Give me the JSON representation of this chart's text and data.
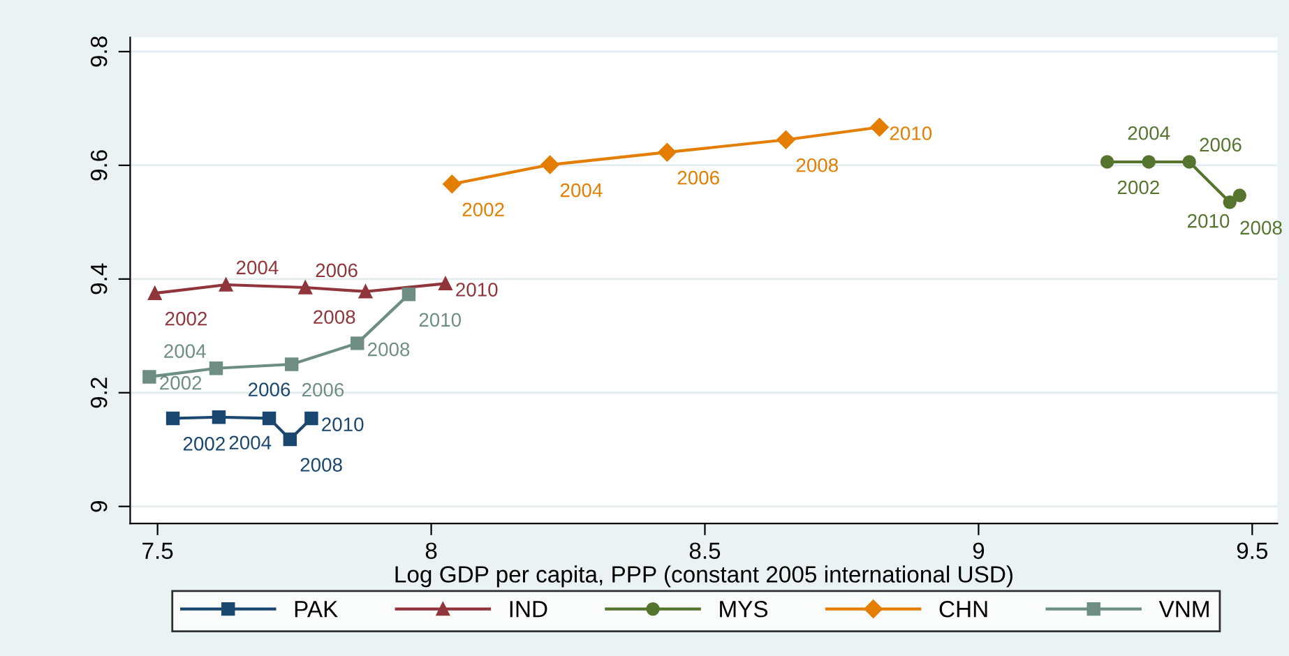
{
  "chart_data": {
    "type": "line",
    "xlabel": "Log GDP per capita, PPP (constant 2005 international USD)",
    "xlim": [
      7.45,
      9.546
    ],
    "xticks": [
      7.5,
      8,
      8.5,
      9,
      9.5
    ],
    "ylim": [
      8.97,
      9.825
    ],
    "yticks": [
      9,
      9.2,
      9.4,
      9.6,
      9.8
    ],
    "grid": "y",
    "legend": "bottom",
    "series": [
      {
        "name": "PAK",
        "color": "#1a476f",
        "marker": "square",
        "x": [
          7.528,
          7.612,
          7.704,
          7.742,
          7.781
        ],
        "values": [
          9.155,
          9.157,
          9.155,
          9.118,
          9.155
        ]
      },
      {
        "name": "IND",
        "color": "#90353b",
        "marker": "triangle",
        "x": [
          7.495,
          7.625,
          7.77,
          7.88,
          8.026
        ],
        "values": [
          9.375,
          9.39,
          9.385,
          9.378,
          9.392
        ]
      },
      {
        "name": "MYS",
        "color": "#55752f",
        "marker": "circle",
        "x": [
          9.235,
          9.311,
          9.385,
          9.459,
          9.477
        ],
        "values": [
          9.606,
          9.606,
          9.606,
          9.535,
          9.547
        ]
      },
      {
        "name": "CHN",
        "color": "#e37e00",
        "marker": "diamond",
        "x": [
          8.038,
          8.217,
          8.431,
          8.648,
          8.819
        ],
        "values": [
          9.567,
          9.601,
          9.623,
          9.645,
          9.667
        ]
      },
      {
        "name": "VNM",
        "color": "#6e8e84",
        "marker": "square",
        "x": [
          7.485,
          7.607,
          7.745,
          7.865,
          7.959
        ],
        "values": [
          9.228,
          9.243,
          9.25,
          9.287,
          9.373
        ]
      }
    ],
    "annotations": [
      {
        "text": "2002",
        "x": 7.528,
        "y": 9.155
      },
      {
        "text": "2004",
        "x": 7.612,
        "y": 9.157
      },
      {
        "text": "2006",
        "x": 7.704,
        "y": 9.155
      },
      {
        "text": "2008",
        "x": 7.742,
        "y": 9.118
      },
      {
        "text": "2010",
        "x": 7.781,
        "y": 9.155
      },
      {
        "text": "2002",
        "x": 7.495,
        "y": 9.375
      },
      {
        "text": "2004",
        "x": 7.625,
        "y": 9.39
      },
      {
        "text": "2006",
        "x": 7.77,
        "y": 9.385
      },
      {
        "text": "2008",
        "x": 7.88,
        "y": 9.378
      },
      {
        "text": "2010",
        "x": 8.026,
        "y": 9.392
      },
      {
        "text": "2002",
        "x": 9.235,
        "y": 9.606
      },
      {
        "text": "2004",
        "x": 9.311,
        "y": 9.606
      },
      {
        "text": "2006",
        "x": 9.385,
        "y": 9.606
      },
      {
        "text": "2008",
        "x": 9.459,
        "y": 9.535
      },
      {
        "text": "2010",
        "x": 9.477,
        "y": 9.547
      },
      {
        "text": "2002",
        "x": 8.038,
        "y": 9.567
      },
      {
        "text": "2004",
        "x": 8.217,
        "y": 9.601
      },
      {
        "text": "2006",
        "x": 8.431,
        "y": 9.623
      },
      {
        "text": "2008",
        "x": 8.648,
        "y": 9.645
      },
      {
        "text": "2010",
        "x": 8.819,
        "y": 9.667
      },
      {
        "text": "2002",
        "x": 7.485,
        "y": 9.228
      },
      {
        "text": "2004",
        "x": 7.607,
        "y": 9.243
      },
      {
        "text": "2006",
        "x": 7.745,
        "y": 9.25
      },
      {
        "text": "2008",
        "x": 7.865,
        "y": 9.287
      },
      {
        "text": "2010",
        "x": 7.959,
        "y": 9.373
      }
    ]
  }
}
